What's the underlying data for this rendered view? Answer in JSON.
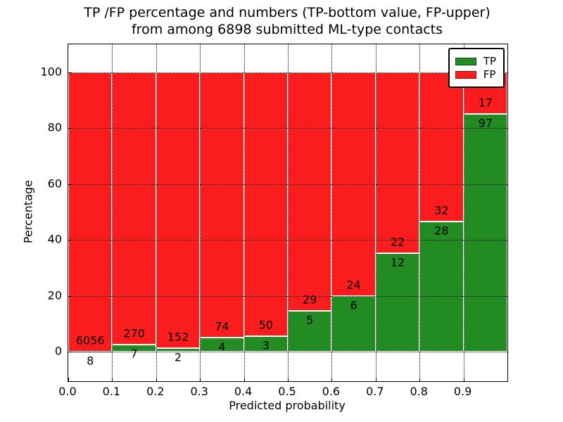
{
  "title": {
    "line1": "TP /FP percentage and numbers (TP-bottom value, FP-upper)",
    "line2": "from among 6898 submitted ML-type contacts"
  },
  "axes": {
    "xlabel": "Predicted probability",
    "ylabel": "Percentage"
  },
  "legend": {
    "entries": [
      {
        "label": "TP",
        "color": "#228b22"
      },
      {
        "label": "FP",
        "color": "#fb1d1d"
      }
    ]
  },
  "chart_data": {
    "type": "bar",
    "stacked": true,
    "normalized_to_percent": true,
    "title": "TP /FP percentage and numbers (TP-bottom value, FP-upper) from among 6898 submitted ML-type contacts",
    "xlabel": "Predicted probability",
    "ylabel": "Percentage",
    "total_contacts": 6898,
    "bin_edges": [
      0.0,
      0.1,
      0.2,
      0.3,
      0.4,
      0.5,
      0.6,
      0.7,
      0.8,
      0.9,
      1.0
    ],
    "series": [
      {
        "name": "TP",
        "color": "#228b22",
        "position": "bottom",
        "values": [
          8,
          7,
          2,
          4,
          3,
          5,
          6,
          12,
          28,
          97
        ]
      },
      {
        "name": "FP",
        "color": "#fb1d1d",
        "position": "top",
        "values": [
          6056,
          270,
          152,
          74,
          50,
          29,
          24,
          22,
          32,
          17
        ]
      }
    ],
    "tp_percent_per_bin": [
      0.13,
      2.53,
      1.3,
      5.13,
      5.66,
      14.71,
      20.0,
      35.29,
      46.67,
      85.09
    ],
    "xlim": [
      0,
      1
    ],
    "ylim": [
      -10.5,
      110
    ],
    "xticks": [
      0.0,
      0.1,
      0.2,
      0.3,
      0.4,
      0.5,
      0.6,
      0.7,
      0.8,
      0.9
    ],
    "xtick_labels": [
      "0.0",
      "0.1",
      "0.2",
      "0.3",
      "0.4",
      "0.5",
      "0.6",
      "0.7",
      "0.8",
      "0.9"
    ],
    "yticks": [
      0,
      20,
      40,
      60,
      80,
      100
    ],
    "ytick_labels": [
      "0",
      "20",
      "40",
      "60",
      "80",
      "100"
    ],
    "grid": "dotted black, horizontal at yticks and vertical at bin edges",
    "legend_position": "upper right",
    "bar_edge_color": "#ffffff"
  }
}
